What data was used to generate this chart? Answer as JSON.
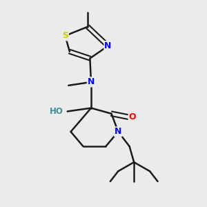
{
  "background_color": "#ebebeb",
  "bond_color": "#1a1a1a",
  "atom_colors": {
    "N": "#0000ff",
    "O_red": "#ff0000",
    "O_teal": "#3d9090",
    "S": "#cccc00",
    "C": "#1a1a1a"
  },
  "figsize": [
    3.0,
    3.0
  ],
  "dpi": 100,
  "xlim": [
    0.1,
    0.9
  ],
  "ylim": [
    0.05,
    0.95
  ]
}
